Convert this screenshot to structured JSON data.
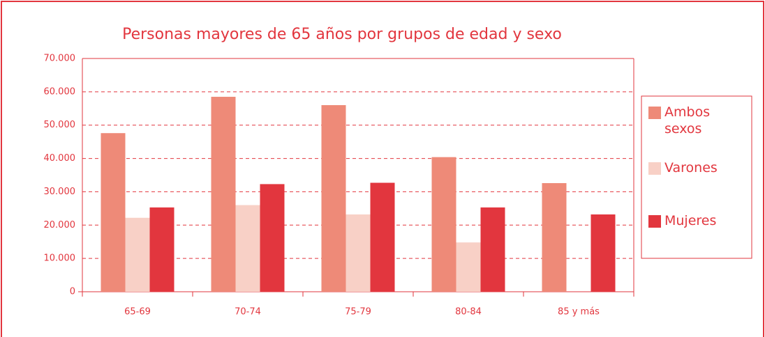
{
  "chart_data": {
    "type": "bar",
    "title": "Personas mayores de 65 años por grupos de edad y sexo",
    "categories": [
      "65-69",
      "70-74",
      "75-79",
      "80-84",
      "85 y más"
    ],
    "series": [
      {
        "name": "Ambos sexos",
        "color": "#ee8a78",
        "values": [
          47600,
          58500,
          56000,
          40400,
          32600
        ]
      },
      {
        "name": "Varones",
        "color": "#f8d0c6",
        "values": [
          22200,
          26000,
          23200,
          14800,
          null
        ]
      },
      {
        "name": "Mujeres",
        "color": "#e2363e",
        "values": [
          25300,
          32300,
          32700,
          25300,
          23200
        ]
      }
    ],
    "ylim": [
      0,
      70000
    ],
    "yticks": [
      {
        "value": 0,
        "label": "0"
      },
      {
        "value": 10000,
        "label": "10.000"
      },
      {
        "value": 20000,
        "label": "20.000"
      },
      {
        "value": 30000,
        "label": "30.000"
      },
      {
        "value": 40000,
        "label": "40.000"
      },
      {
        "value": 50000,
        "label": "50.000"
      },
      {
        "value": 60000,
        "label": "60.000"
      },
      {
        "value": 70000,
        "label": "70.000"
      }
    ],
    "grid": true,
    "legend": "right"
  }
}
